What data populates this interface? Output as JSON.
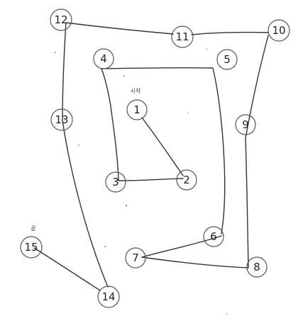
{
  "annotations": {
    "start_label": "시작",
    "end_label": "끝"
  },
  "nodes": [
    "1",
    "2",
    "3",
    "4",
    "5",
    "6",
    "7",
    "8",
    "9",
    "10",
    "11",
    "12",
    "13",
    "14",
    "15"
  ],
  "path_order": [
    "1",
    "2",
    "3",
    "4",
    "6",
    "7",
    "8",
    "9",
    "10",
    "11",
    "12",
    "13",
    "14",
    "15"
  ],
  "colors": {
    "line": "#333333",
    "circle_stroke": "#555555",
    "text": "#222222",
    "background": "#ffffff"
  }
}
